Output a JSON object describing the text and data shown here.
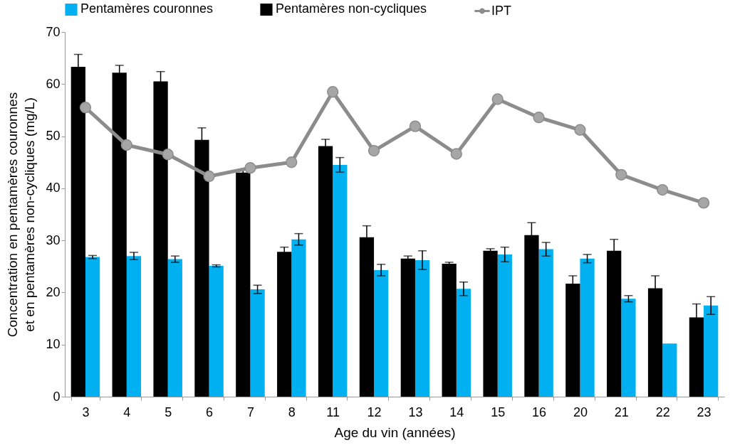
{
  "chart_data": {
    "type": "bar",
    "xlabel": "Age du vin (années)",
    "ylabel": "Concentration en pentamères couronnes\net en pentamères non-cycliques (mg/L)",
    "categories": [
      "3",
      "4",
      "5",
      "6",
      "7",
      "8",
      "11",
      "12",
      "13",
      "14",
      "15",
      "16",
      "20",
      "21",
      "22",
      "23"
    ],
    "ylim": [
      0,
      70
    ],
    "yticks": [
      0,
      10,
      20,
      30,
      40,
      50,
      60,
      70
    ],
    "legend": "top",
    "marker": "circle",
    "series": [
      {
        "name": "Pentamères couronnes",
        "color": "#00b0f0",
        "values": [
          26.8,
          27.0,
          26.4,
          25.1,
          20.6,
          30.2,
          44.5,
          24.3,
          26.2,
          20.7,
          27.3,
          28.3,
          26.5,
          18.8,
          10.2,
          17.5
        ],
        "errors": [
          0.3,
          0.7,
          0.6,
          0.2,
          0.8,
          1.1,
          1.4,
          1.1,
          1.8,
          1.3,
          1.4,
          1.3,
          0.8,
          0.6,
          null,
          1.7
        ]
      },
      {
        "name": "Pentamères non-cycliques",
        "color": "#000000",
        "values": [
          63.3,
          62.2,
          60.5,
          49.3,
          43.0,
          27.8,
          48.1,
          30.6,
          26.5,
          25.5,
          28.0,
          31.0,
          21.7,
          28.0,
          20.8,
          15.2
        ],
        "errors": [
          2.4,
          1.4,
          1.9,
          2.3,
          0.7,
          0.9,
          1.3,
          2.2,
          0.5,
          0.3,
          0.4,
          2.4,
          1.5,
          2.2,
          2.4,
          2.6
        ]
      },
      {
        "name": "IPT",
        "color": "#8c8c8c",
        "type": "line",
        "values": [
          55.5,
          48.3,
          46.5,
          42.3,
          43.9,
          45.0,
          58.5,
          47.2,
          51.9,
          46.6,
          57.1,
          53.6,
          51.2,
          42.6,
          39.7,
          37.2
        ]
      }
    ]
  }
}
